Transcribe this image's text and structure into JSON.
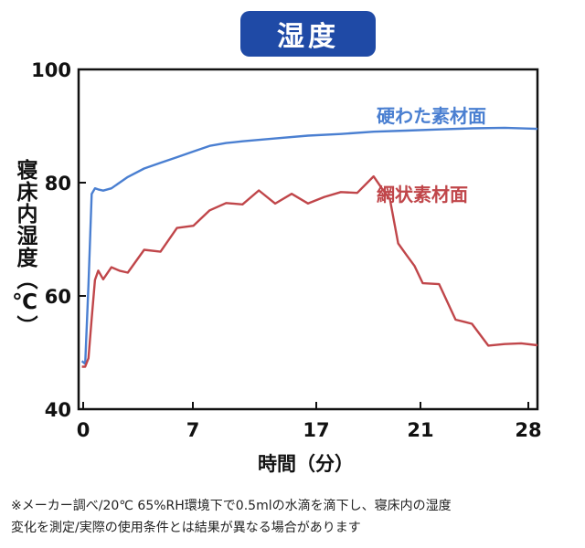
{
  "title": "湿度",
  "chart_data": {
    "type": "line",
    "title": "湿度",
    "xlabel": "時間（分）",
    "ylabel": "寝床内湿度（℃）",
    "xticks": [
      "0",
      "7",
      "17",
      "21",
      "28"
    ],
    "yticks": [
      "100",
      "80",
      "60",
      "40"
    ],
    "xlim": [
      0,
      28
    ],
    "ylim": [
      40,
      100
    ],
    "series": [
      {
        "name": "硬わた素材面",
        "color": "#4a7fd1",
        "x": [
          0.2,
          0.4,
          0.6,
          0.8,
          1.0,
          1.2,
          1.5,
          2.0,
          2.5,
          3.0,
          4.0,
          5.0,
          6.0,
          7.0,
          8.0,
          9.0,
          10.0,
          12.0,
          14.0,
          16.0,
          18.0,
          20.0,
          22.0,
          24.0,
          26.0,
          28.0
        ],
        "y": [
          48.5,
          48,
          62,
          78,
          79,
          78.8,
          78.6,
          79,
          80,
          81,
          82.5,
          83.5,
          84.5,
          85.5,
          86.5,
          87,
          87.3,
          87.8,
          88.3,
          88.6,
          89,
          89.2,
          89.4,
          89.6,
          89.7,
          89.5
        ]
      },
      {
        "name": "網状素材面",
        "color": "#c0464a",
        "x": [
          0.2,
          0.4,
          0.6,
          0.8,
          1.0,
          1.2,
          1.5,
          2.0,
          2.5,
          3.0,
          4.0,
          5.0,
          6.0,
          7.0,
          8.0,
          9.0,
          10.0,
          11.0,
          12.0,
          13.0,
          14.0,
          15.0,
          16.0,
          17.0,
          18.0,
          18.5,
          19.0,
          19.5,
          20.0,
          20.5,
          21.0,
          22.0,
          23.0,
          24.0,
          25.0,
          26.0,
          27.0,
          28.0
        ],
        "y": [
          47.5,
          47.5,
          49,
          56,
          64,
          63.5,
          63.5,
          65,
          64,
          65,
          67,
          69,
          71,
          73,
          75,
          76,
          77,
          77.5,
          77.5,
          77,
          77,
          77.3,
          78,
          79,
          80,
          80.2,
          76,
          70,
          67,
          65,
          63,
          61,
          57,
          54,
          52,
          51.2,
          51.4,
          52
        ]
      }
    ],
    "annotations": [
      "硬わた素材面",
      "網状素材面"
    ],
    "grid": false,
    "legend": "inline labels"
  },
  "footnote": [
    "※メーカー調べ/20℃ 65%RH環境下で0.5mlの水滴を滴下し、寝床内の湿度",
    "変化を測定/実際の使用条件とは結果が異なる場合があります"
  ]
}
